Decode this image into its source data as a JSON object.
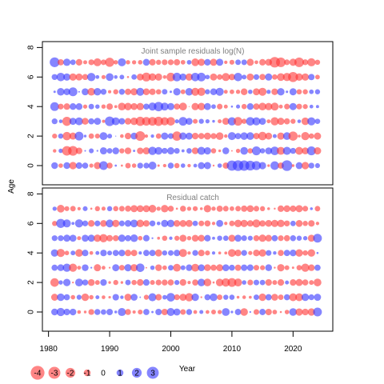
{
  "chart_data": {
    "type": "bubble-residuals",
    "ylabel": "Age",
    "xlabel": "Year",
    "x_range": [
      1981,
      2024
    ],
    "xlim": [
      1979,
      2026.5
    ],
    "x_ticks": [
      1980,
      1990,
      2000,
      2010,
      2020
    ],
    "x_tick_labels": [
      "1980",
      "1990",
      "2000",
      "2010",
      "2020"
    ],
    "y_ticks": [
      0,
      2,
      4,
      6,
      8
    ],
    "y_tick_labels": [
      "0",
      "2",
      "4",
      "6",
      "8"
    ],
    "ylim": [
      -1.3,
      8.4
    ],
    "colors": {
      "positive": "#3333ff",
      "negative": "#ff3333",
      "frame": "#000000",
      "title": "#808080"
    },
    "panels": [
      {
        "title": "Joint sample residuals log(N)",
        "ages": [
          0,
          1,
          2,
          3,
          4,
          5,
          6,
          7
        ],
        "residuals": {
          "0": [
            0.95,
            -0.43,
            0.97,
            -1.17,
            0.92,
            0.78,
            -0.36,
            -1.08,
            1.61,
            -0.75,
            0.1,
            -0.1,
            -0.64,
            -0.41,
            0.72,
            0.71,
            1.33,
            -0.12,
            -0.25,
            0.76,
            -0.58,
            0.42,
            -0.26,
            0.3,
            1.02,
            1.09,
            -0.08,
            0.42,
            -0.82,
            2.22,
            2.4,
            2.26,
            2.03,
            1.73,
            1.13,
            -0.15,
            1.56,
            -0.81,
            2.4,
            -0.17,
            1.02,
            -1.14,
            0.72,
            0.52
          ],
          "1": [
            -0.27,
            0.41,
            -1.93,
            -1.98,
            -0.91,
            0.06,
            0.49,
            0.07,
            1.09,
            0.63,
            0.99,
            -0.56,
            -0.96,
            0.12,
            -0.91,
            -1.09,
            1.47,
            1.26,
            0.75,
            1.11,
            0.69,
            0.2,
            0.62,
            -0.97,
            1.35,
            1.12,
            -0.57,
            -0.16,
            0.98,
            -0.05,
            -0.39,
            1.26,
            -0.59,
            1.65,
            0.57,
            1.02,
            1.56,
            -1.34,
            1.38,
            0.75,
            -1.3,
            -1.03,
            1.67,
            -1.13
          ],
          "2": [
            -0.52,
            0.57,
            -1.51,
            -1.06,
            1.64,
            0.15,
            -0.61,
            -0.52,
            1.3,
            0.49,
            0.02,
            -0.29,
            -0.89,
            1.0,
            -2.0,
            -0.24,
            0.24,
            -0.61,
            1.09,
            0.72,
            -1.81,
            1.16,
            1.04,
            -0.93,
            -0.79,
            -1.05,
            -0.74,
            -1.22,
            -0.26,
            1.36,
            0.82,
            1.21,
            1.24,
            -0.86,
            -1.52,
            -1.02,
            0.34,
            -1.11,
            1.25,
            -1.8,
            -0.17,
            -1.42,
            -0.6,
            -1.08
          ],
          "3": [
            0.72,
            0.29,
            -1.76,
            1.06,
            1.32,
            -0.98,
            0.78,
            1.04,
            -0.21,
            1.94,
            1.33,
            0.88,
            -0.92,
            -1.21,
            -1.77,
            -1.56,
            -1.6,
            -1.81,
            -1.43,
            -1.53,
            0.35,
            1.58,
            1.0,
            -0.49,
            0.54,
            0.37,
            0.16,
            -0.34,
            -1.05,
            1.46,
            -1.59,
            -0.56,
            1.53,
            1.38,
            1.0,
            -0.32,
            -1.43,
            -1.09,
            -0.79,
            -0.53,
            0.28,
            -1.22,
            1.39,
            0.6
          ],
          "4": [
            1.62,
            -0.71,
            -0.9,
            0.93,
            0.97,
            -0.37,
            0.64,
            0.41,
            -0.4,
            -0.87,
            -0.19,
            -1.28,
            -1.22,
            -1.0,
            -1.15,
            0.76,
            1.37,
            1.87,
            1.34,
            1.08,
            -0.8,
            -1.3,
            -0.02,
            -1.15,
            -1.18,
            1.04,
            0.45,
            -0.67,
            -0.33,
            0.09,
            0.35,
            -0.58,
            0.93,
            -0.87,
            -1.25,
            -1.15,
            -1.33,
            -0.33,
            -0.68,
            1.1,
            -0.69,
            -0.53,
            0.3,
            0.21
          ],
          "5": [
            0.12,
            1.2,
            0.97,
            1.66,
            0.06,
            1.04,
            -1.25,
            1.19,
            0.75,
            -0.23,
            -0.56,
            0.74,
            -0.85,
            -1.09,
            1.34,
            -0.96,
            -0.87,
            -0.59,
            0.64,
            0.12,
            1.15,
            -0.47,
            1.21,
            -1.33,
            -1.42,
            0.55,
            0.97,
            1.38,
            -0.32,
            -0.44,
            -0.39,
            -0.96,
            0.42,
            -1.03,
            -1.37,
            0.38,
            -0.93,
            1.16,
            0.13,
            1.07,
            -0.59,
            -0.56,
            0.44,
            0.56
          ],
          "6": [
            0.75,
            1.51,
            1.11,
            -1.14,
            -1.04,
            -0.76,
            1.46,
            0.3,
            -0.36,
            1.26,
            0.28,
            0.47,
            -0.09,
            0.62,
            -1.01,
            -1.65,
            -1.18,
            -1.11,
            -0.28,
            -1.57,
            1.56,
            1.06,
            -1.13,
            1.53,
            1.59,
            0.44,
            -1.07,
            -0.66,
            -1.35,
            -0.9,
            1.51,
            0.47,
            -1.06,
            0.69,
            -0.81,
            1.09,
            -0.62,
            -1.27,
            -1.42,
            -2.12,
            -1.17,
            -1.13,
            0.85,
            -0.46
          ],
          "7": [
            2.02,
            -0.82,
            1.13,
            0.66,
            -0.91,
            -0.34,
            -0.71,
            -1.31,
            -0.66,
            -1.77,
            -0.41,
            1.35,
            -0.4,
            -0.38,
            -0.42,
            0.99,
            -0.88,
            -0.56,
            -0.71,
            -0.7,
            -0.85,
            -0.45,
            0.45,
            -1.24,
            -1.09,
            0.91,
            -1.07,
            1.08,
            -0.24,
            -0.51,
            0.65,
            0.67,
            -1.05,
            -0.3,
            -0.9,
            -0.98,
            -2.34,
            -1.94,
            -0.68,
            -1.11,
            -1.94,
            -0.73,
            -1.4,
            -0.58
          ]
        }
      },
      {
        "title": "Residual catch",
        "ages": [
          0,
          1,
          2,
          3,
          4,
          5,
          6,
          7
        ],
        "residuals": {
          "0": [
            0.98,
            1.42,
            0.92,
            0.95,
            -0.29,
            -0.16,
            -0.73,
            0.77,
            0.64,
            0.87,
            0.16,
            1.38,
            -0.75,
            -0.23,
            -0.51,
            0.8,
            0.11,
            0.88,
            -0.88,
            1.33,
            1.05,
            -0.65,
            0.74,
            -0.31,
            0.34,
            -0.3,
            -0.48,
            -0.37,
            1.3,
            0.14,
            0.85,
            -1.2,
            0.07,
            -0.68,
            0.85,
            -0.89,
            -0.46,
            -0.09,
            -0.43,
            1.24,
            -1.13,
            -0.93,
            -1.14,
            1.62
          ],
          "1": [
            -1.04,
            1.21,
            0.81,
            -0.42,
            0.53,
            -1.2,
            -0.42,
            0.33,
            -0.29,
            -0.14,
            0.9,
            0.26,
            -1.08,
            1.02,
            0.05,
            -0.54,
            1.36,
            -0.89,
            0.44,
            1.53,
            -0.73,
            -1.07,
            -1.44,
            1.17,
            -0.08,
            0.79,
            1.25,
            -0.62,
            0.55,
            0.59,
            -0.17,
            -0.28,
            -0.19,
            0.66,
            -1.16,
            0.85,
            -1.0,
            -0.63,
            0.78,
            -1.31,
            -1.32,
            1.2,
            0.73,
            1.06
          ],
          "2": [
            -1.54,
            0.41,
            1.15,
            -0.07,
            1.3,
            0.77,
            -0.99,
            -0.48,
            0.92,
            -0.15,
            -0.55,
            -0.15,
            0.65,
            -0.57,
            -0.94,
            0.9,
            -0.5,
            -0.72,
            -0.76,
            -0.79,
            0.53,
            -0.94,
            -0.24,
            -0.8,
            1.21,
            -1.25,
            -0.09,
            -1.21,
            -1.48,
            -1.64,
            -1.35,
            0.42,
            -0.68,
            0.67,
            0.63,
            -0.92,
            -0.49,
            -0.91,
            0.33,
            -0.9,
            -1.07,
            -0.79,
            -0.48,
            -1.28
          ],
          "3": [
            0.81,
            0.97,
            1.44,
            -1.4,
            -0.32,
            0.96,
            0.07,
            -1.09,
            -0.3,
            -0.07,
            1.06,
            -0.66,
            1.12,
            -1.12,
            1.53,
            -0.05,
            0.42,
            -0.95,
            -0.44,
            0.64,
            -1.28,
            0.5,
            0.92,
            -1.3,
            1.0,
            -0.97,
            -0.8,
            -1.03,
            1.01,
            0.76,
            -0.85,
            0.89,
            0.91,
            -0.67,
            -0.52,
            0.98,
            -0.08,
            -1.13,
            -0.48,
            -0.12,
            -0.61,
            -1.42,
            -0.92,
            0.82
          ],
          "4": [
            1.16,
            -1.4,
            -0.43,
            0.48,
            -1.23,
            0.9,
            -0.3,
            0.33,
            0.91,
            0.49,
            0.81,
            0.92,
            -0.89,
            -0.87,
            0.23,
            0.82,
            0.83,
            -1.05,
            0.56,
            0.66,
            0.9,
            -1.36,
            -0.24,
            0.73,
            -0.9,
            -0.53,
            0.24,
            -0.18,
            -0.19,
            -1.29,
            -0.95,
            0.72,
            -0.37,
            -0.95,
            -1.15,
            0.69,
            0.27,
            -0.78,
            0.83,
            0.94,
            -1.17,
            -0.6,
            -1.19,
            0.09
          ],
          "5": [
            0.71,
            0.72,
            1.06,
            1.04,
            -0.35,
            1.03,
            1.08,
            -1.18,
            -1.44,
            -0.88,
            -0.78,
            1.15,
            0.8,
            1.24,
            -0.44,
            0.89,
            0.07,
            -0.18,
            -0.59,
            0.25,
            -0.54,
            -1.04,
            -0.41,
            -1.0,
            -0.97,
            0.91,
            0.2,
            0.58,
            0.61,
            -1.04,
            1.03,
            0.69,
            0.52,
            -0.77,
            -1.13,
            -0.95,
            0.81,
            -0.7,
            -0.8,
            0.74,
            0.57,
            0.4,
            -1.05,
            1.62
          ],
          "6": [
            -0.56,
            1.74,
            1.35,
            0.19,
            1.42,
            0.73,
            -0.95,
            0.73,
            -0.96,
            1.3,
            -1.13,
            0.71,
            0.93,
            1.27,
            -1.21,
            -0.9,
            0.74,
            0.29,
            1.1,
            1.19,
            -0.95,
            -0.99,
            -1.04,
            0.62,
            -0.67,
            -0.8,
            -0.25,
            1.04,
            -0.24,
            -0.66,
            -1.17,
            -1.13,
            -0.86,
            -1.39,
            -0.85,
            -0.98,
            -1.1,
            -1.16,
            -0.75,
            0.63,
            -0.99,
            -0.58,
            -0.9,
            -0.25
          ],
          "7": [
            0.38,
            -1.25,
            -0.51,
            -0.64,
            -0.24,
            0.5,
            -0.09,
            -0.55,
            -0.35,
            0.56,
            -0.59,
            -0.67,
            -0.78,
            -1.08,
            -1.0,
            -1.04,
            -1.24,
            -0.38,
            -1.19,
            -0.74,
            -0.09,
            -0.75,
            -0.38,
            -0.53,
            -0.17,
            -1.16,
            -0.39,
            -0.82,
            -0.68,
            -0.46,
            -0.64,
            -0.85,
            -1.02,
            -0.69,
            -0.54,
            -0.17,
            -0.08,
            -0.88,
            -0.97,
            -0.87,
            -1.09,
            -0.69,
            0.17,
            -0.63
          ]
        }
      }
    ],
    "legend": {
      "values": [
        -4,
        -3,
        -2,
        -1,
        0,
        1,
        2,
        3
      ],
      "labels": [
        "-4",
        "-3",
        "-2",
        "-1",
        "0",
        "1",
        "2",
        "3"
      ]
    }
  }
}
